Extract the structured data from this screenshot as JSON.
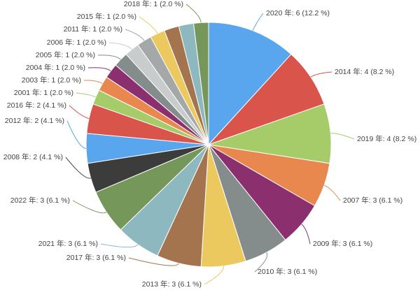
{
  "chart_data": {
    "type": "pie",
    "title": "",
    "slices": [
      {
        "label": "2020 年: 6 (12.2 %)",
        "category": "2020",
        "value": 6,
        "color": "#5aa6ee"
      },
      {
        "label": "2014 年: 4 (8.2 %)",
        "category": "2014",
        "value": 4,
        "color": "#d9544a"
      },
      {
        "label": "2019 年: 4 (8.2 %)",
        "category": "2019",
        "value": 4,
        "color": "#a6cc6a"
      },
      {
        "label": "2007 年: 3 (6.1 %)",
        "category": "2007",
        "value": 3,
        "color": "#e8884f"
      },
      {
        "label": "2009 年: 3 (6.1 %)",
        "category": "2009",
        "value": 3,
        "color": "#8b2f6e"
      },
      {
        "label": "2010 年: 3 (6.1 %)",
        "category": "2010",
        "value": 3,
        "color": "#858c8c"
      },
      {
        "label": "2013 年: 3 (6.1 %)",
        "category": "2013",
        "value": 3,
        "color": "#ecc95f"
      },
      {
        "label": "2017 年: 3 (6.1 %)",
        "category": "2017",
        "value": 3,
        "color": "#a4744f"
      },
      {
        "label": "2021 年: 3 (6.1 %)",
        "category": "2021",
        "value": 3,
        "color": "#8db8bf"
      },
      {
        "label": "2022 年: 3 (6.1 %)",
        "category": "2022",
        "value": 3,
        "color": "#76975a"
      },
      {
        "label": "2008 年: 2 (4.1 %)",
        "category": "2008",
        "value": 2,
        "color": "#3c3c3c"
      },
      {
        "label": "2012 年: 2 (4.1 %)",
        "category": "2012",
        "value": 2,
        "color": "#5aa6ee"
      },
      {
        "label": "2016 年: 2 (4.1 %)",
        "category": "2016",
        "value": 2,
        "color": "#d9544a"
      },
      {
        "label": "2001 年: 1 (2.0 %)",
        "category": "2001",
        "value": 1,
        "color": "#a6cc6a"
      },
      {
        "label": "2003 年: 1 (2.0 %)",
        "category": "2003",
        "value": 1,
        "color": "#e8884f"
      },
      {
        "label": "2004 年: 1 (2.0 %)",
        "category": "2004",
        "value": 1,
        "color": "#8b2f6e"
      },
      {
        "label": "2005 年: 1 (2.0 %)",
        "category": "2005",
        "value": 1,
        "color": "#858c8c"
      },
      {
        "label": "2006 年: 1 (2.0 %)",
        "category": "2006",
        "value": 1,
        "color": "#c8cccc"
      },
      {
        "label": "2011 年: 1 (2.0 %)",
        "category": "2011",
        "value": 1,
        "color": "#a4a8a8"
      },
      {
        "label": "2015 年: 1 (2.0 %)",
        "category": "2015",
        "value": 1,
        "color": "#ecc95f"
      },
      {
        "label": "",
        "category": "",
        "value": 1,
        "color": "#a4744f"
      },
      {
        "label": "",
        "category": "",
        "value": 1,
        "color": "#8db8bf"
      },
      {
        "label": "2018 年: 1 (2.0 %)",
        "category": "2018",
        "value": 1,
        "color": "#76975a"
      }
    ]
  }
}
